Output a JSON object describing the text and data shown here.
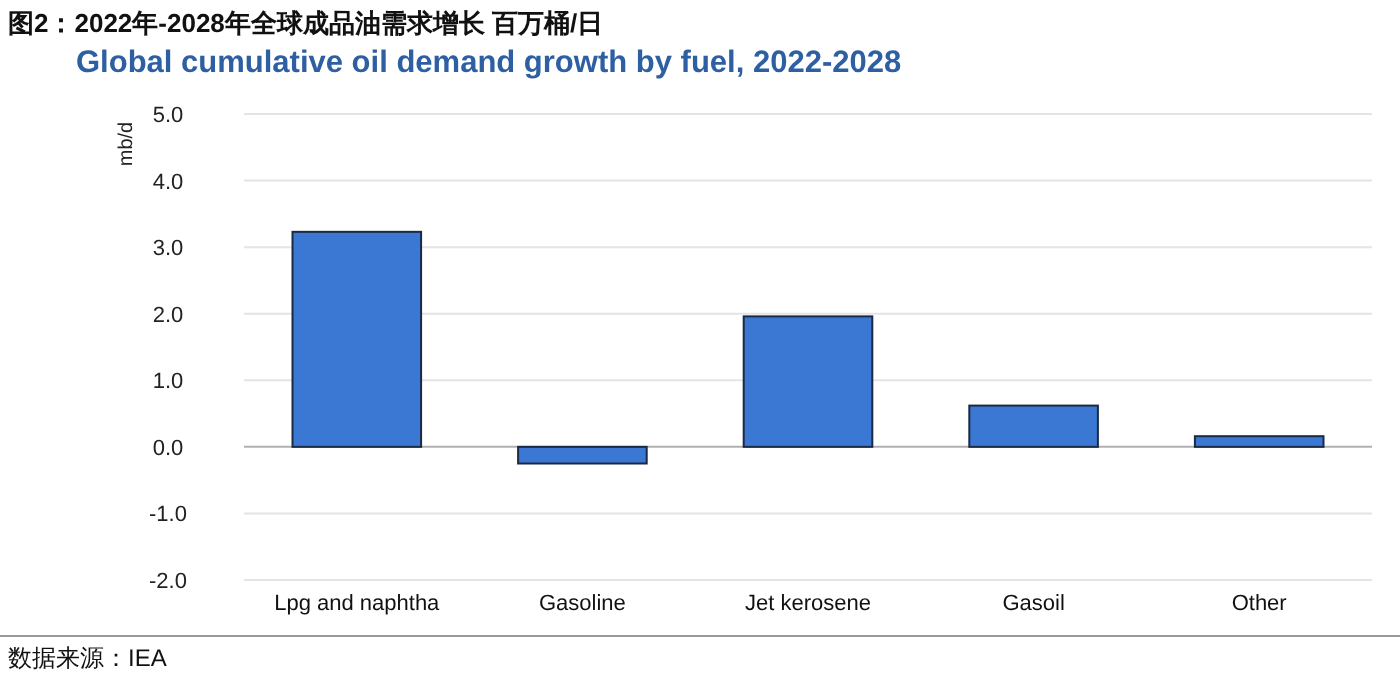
{
  "chart_data": {
    "type": "bar",
    "title": "图2：2022年-2028年全球成品油需求增长 百万桶/日",
    "subtitle": "Global cumulative oil demand growth by fuel, 2022-2028",
    "ylabel": "mb/d",
    "annotations": [
      "数据来源：IEA"
    ],
    "categories": [
      "Lpg and naphtha",
      "Gasoline",
      "Jet kerosene",
      "Gasoil",
      "Other"
    ],
    "values": [
      3.23,
      -0.25,
      1.96,
      0.62,
      0.16
    ],
    "color": "#3b78d4",
    "ylim": [
      -2,
      5
    ],
    "yticks": [
      {
        "value": -2,
        "label": "-2.0"
      },
      {
        "value": -1,
        "label": "-1.0"
      },
      {
        "value": 0,
        "label": "0.0"
      },
      {
        "value": 1,
        "label": "1.0"
      },
      {
        "value": 2,
        "label": "2.0"
      },
      {
        "value": 3,
        "label": "3.0"
      },
      {
        "value": 4,
        "label": "4.0"
      },
      {
        "value": 5,
        "label": "5.0"
      }
    ],
    "grid": "y"
  }
}
